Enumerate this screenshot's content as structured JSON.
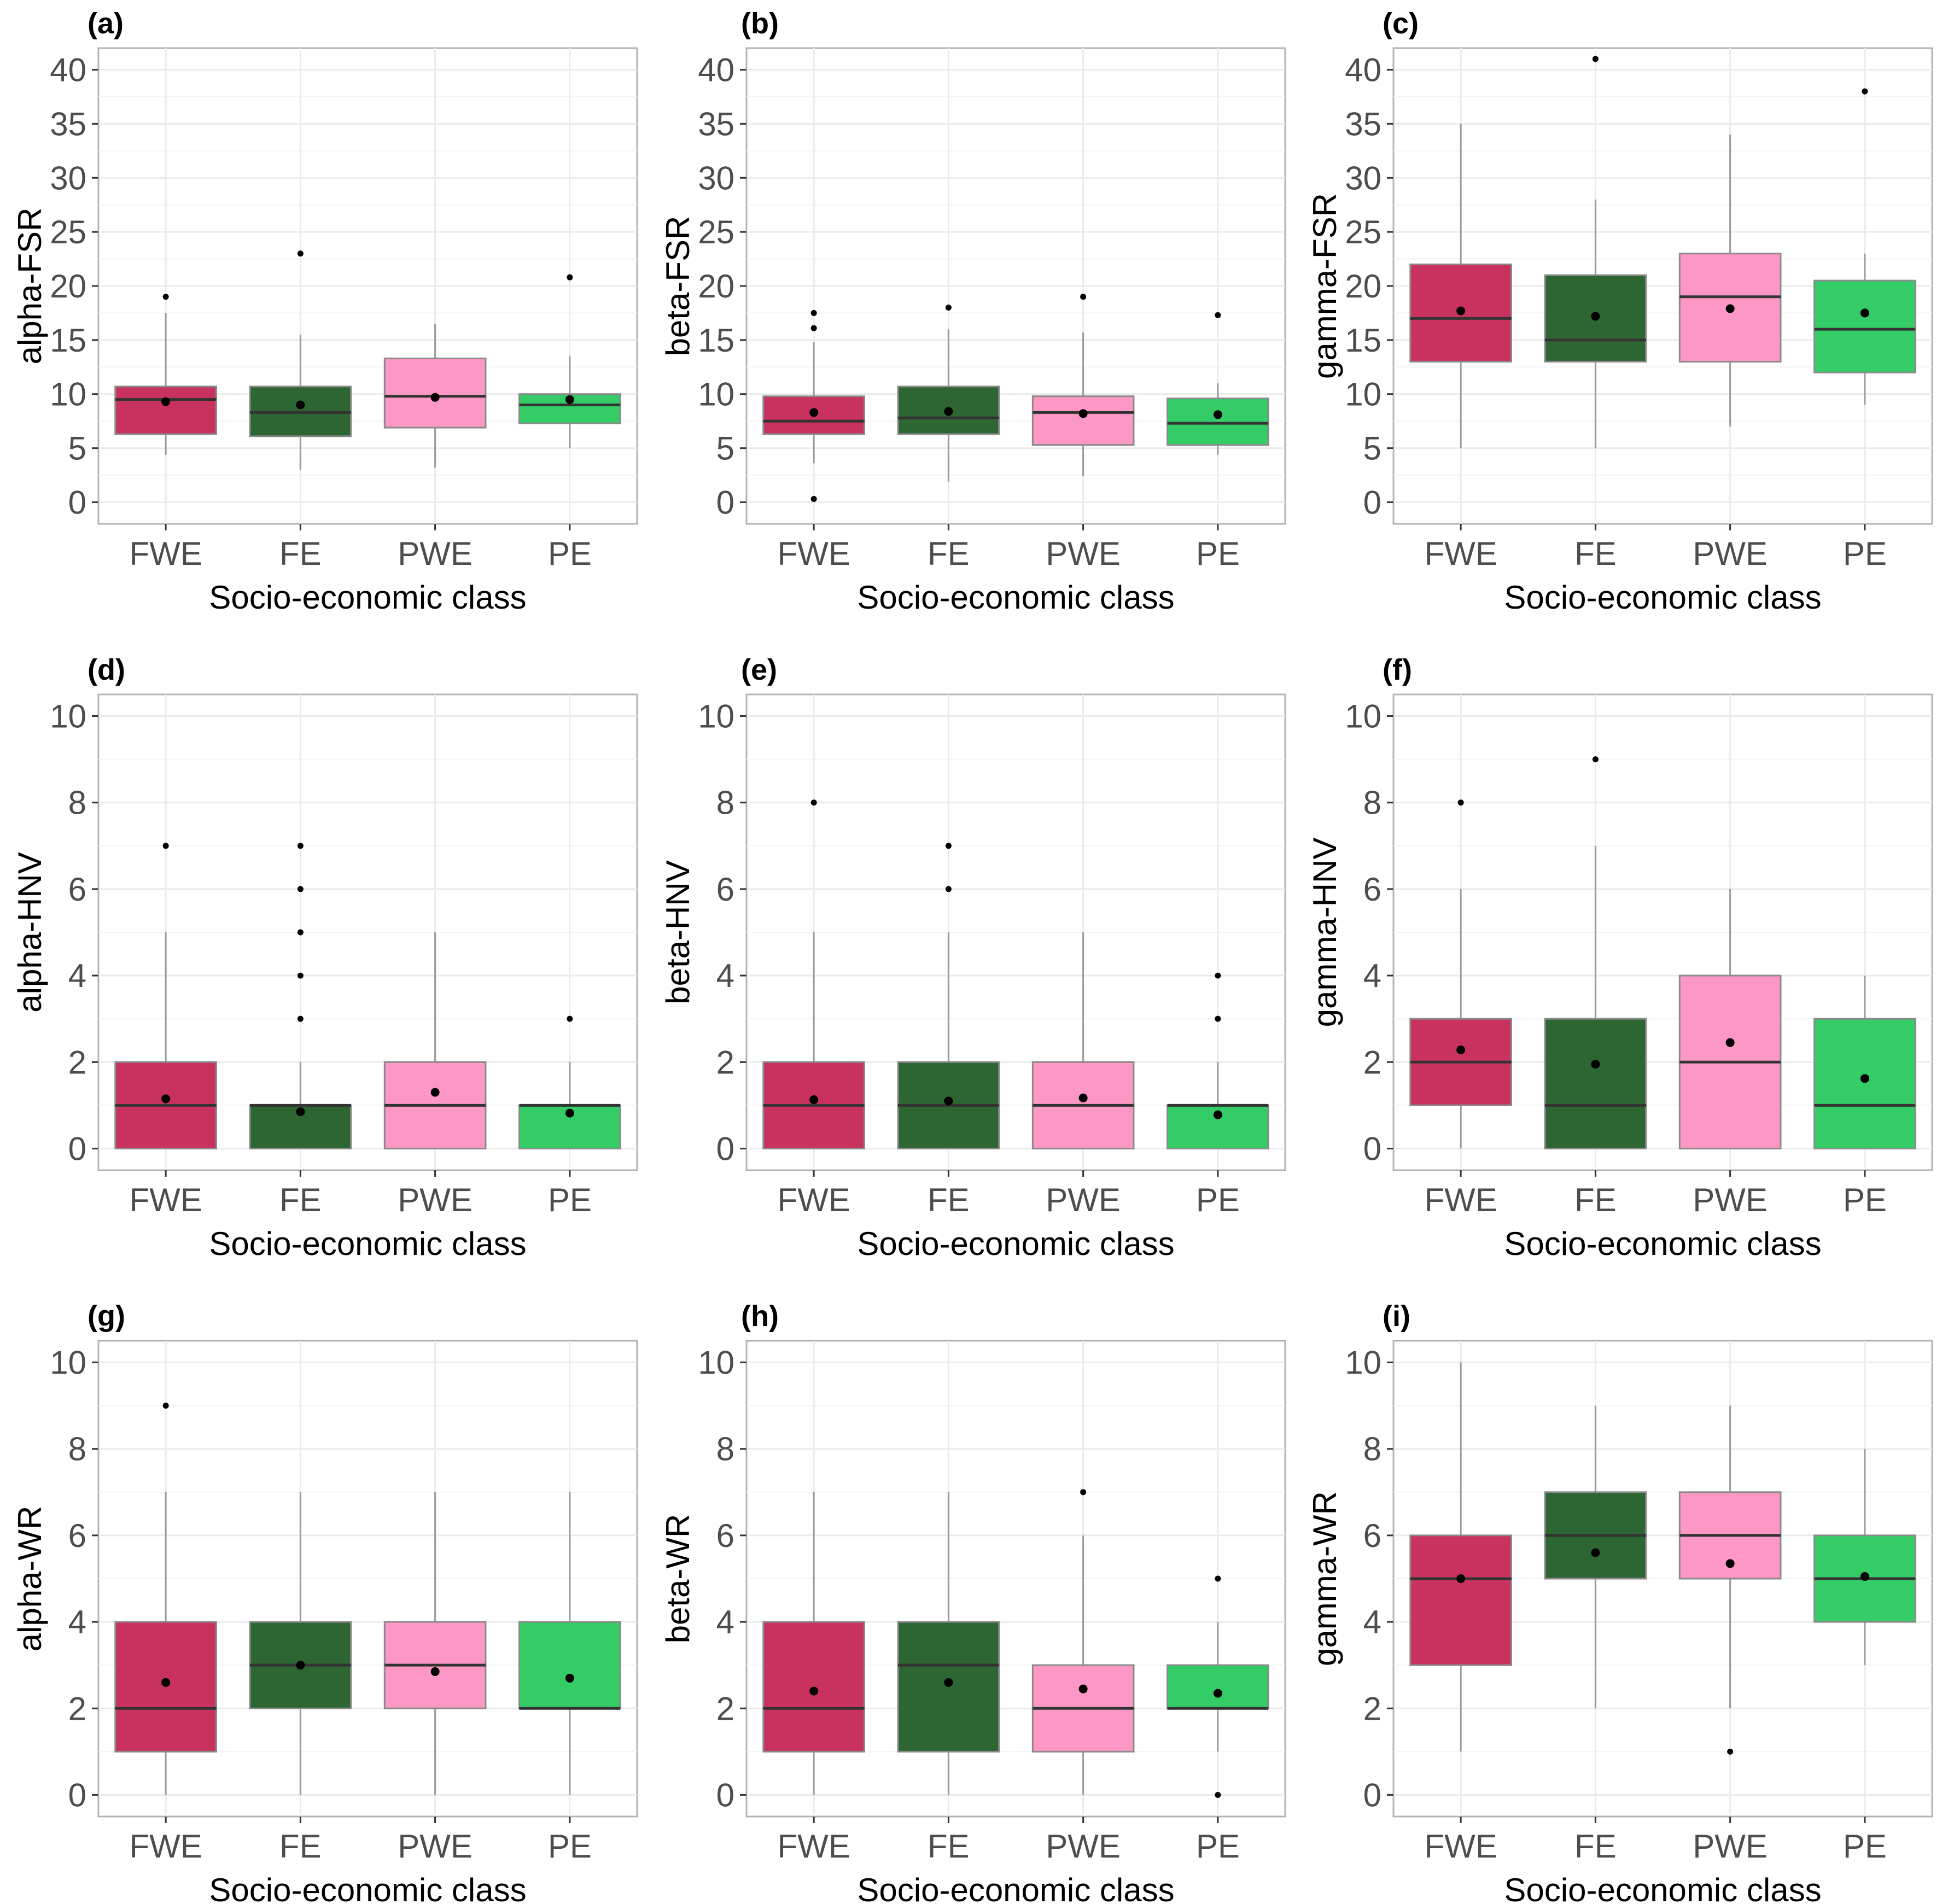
{
  "figure": {
    "categories": [
      "FWE",
      "FE",
      "PWE",
      "PE"
    ],
    "colors": {
      "FWE": "#c9325f",
      "FE": "#2e6633",
      "PWE": "#fd97c5",
      "PE": "#33cc66"
    },
    "xlabel": "Socio-economic class"
  },
  "chart_data": [
    {
      "type": "box",
      "tag": "(a)",
      "ylabel": "alpha-FSR",
      "xlabel": "Socio-economic class",
      "ylim": [
        -2,
        42
      ],
      "yticks": [
        "0",
        "5",
        "10",
        "15",
        "20",
        "25",
        "30",
        "35",
        "40"
      ],
      "categories": [
        "FWE",
        "FE",
        "PWE",
        "PE"
      ],
      "boxes": [
        {
          "category": "FWE",
          "q1": 6.3,
          "median": 9.5,
          "q3": 10.7,
          "whisker_low": 4.4,
          "whisker_high": 17.5,
          "mean": 9.3,
          "outliers": [
            19
          ]
        },
        {
          "category": "FE",
          "q1": 6.1,
          "median": 8.3,
          "q3": 10.7,
          "whisker_low": 3.0,
          "whisker_high": 15.5,
          "mean": 9.0,
          "outliers": [
            23
          ]
        },
        {
          "category": "PWE",
          "q1": 6.9,
          "median": 9.8,
          "q3": 13.3,
          "whisker_low": 3.2,
          "whisker_high": 16.5,
          "mean": 9.7,
          "outliers": []
        },
        {
          "category": "PE",
          "q1": 7.3,
          "median": 9.0,
          "q3": 10.0,
          "whisker_low": 5.0,
          "whisker_high": 13.5,
          "mean": 9.5,
          "outliers": [
            20.8
          ]
        }
      ]
    },
    {
      "type": "box",
      "tag": "(b)",
      "ylabel": "beta-FSR",
      "xlabel": "Socio-economic class",
      "ylim": [
        -2,
        42
      ],
      "yticks": [
        "0",
        "5",
        "10",
        "15",
        "20",
        "25",
        "30",
        "35",
        "40"
      ],
      "categories": [
        "FWE",
        "FE",
        "PWE",
        "PE"
      ],
      "boxes": [
        {
          "category": "FWE",
          "q1": 6.3,
          "median": 7.5,
          "q3": 9.8,
          "whisker_low": 3.6,
          "whisker_high": 14.8,
          "mean": 8.3,
          "outliers": [
            0.3,
            16.1,
            17.5
          ]
        },
        {
          "category": "FE",
          "q1": 6.3,
          "median": 7.8,
          "q3": 10.7,
          "whisker_low": 1.9,
          "whisker_high": 16.0,
          "mean": 8.4,
          "outliers": [
            18
          ]
        },
        {
          "category": "PWE",
          "q1": 5.3,
          "median": 8.3,
          "q3": 9.8,
          "whisker_low": 2.4,
          "whisker_high": 15.7,
          "mean": 8.2,
          "outliers": [
            19
          ]
        },
        {
          "category": "PE",
          "q1": 5.3,
          "median": 7.3,
          "q3": 9.6,
          "whisker_low": 4.4,
          "whisker_high": 11.0,
          "mean": 8.1,
          "outliers": [
            17.3
          ]
        }
      ]
    },
    {
      "type": "box",
      "tag": "(c)",
      "ylabel": "gamma-FSR",
      "xlabel": "Socio-economic class",
      "ylim": [
        -2,
        42
      ],
      "yticks": [
        "0",
        "5",
        "10",
        "15",
        "20",
        "25",
        "30",
        "35",
        "40"
      ],
      "categories": [
        "FWE",
        "FE",
        "PWE",
        "PE"
      ],
      "boxes": [
        {
          "category": "FWE",
          "q1": 13,
          "median": 17,
          "q3": 22,
          "whisker_low": 5,
          "whisker_high": 35,
          "mean": 17.7,
          "outliers": []
        },
        {
          "category": "FE",
          "q1": 13,
          "median": 15,
          "q3": 21,
          "whisker_low": 5,
          "whisker_high": 28,
          "mean": 17.2,
          "outliers": [
            41
          ]
        },
        {
          "category": "PWE",
          "q1": 13,
          "median": 19,
          "q3": 23,
          "whisker_low": 7,
          "whisker_high": 34,
          "mean": 17.9,
          "outliers": []
        },
        {
          "category": "PE",
          "q1": 12,
          "median": 16,
          "q3": 20.5,
          "whisker_low": 9,
          "whisker_high": 23,
          "mean": 17.5,
          "outliers": [
            38
          ]
        }
      ]
    },
    {
      "type": "box",
      "tag": "(d)",
      "ylabel": "alpha-HNV",
      "xlabel": "Socio-economic class",
      "ylim": [
        -0.5,
        10.5
      ],
      "yticks": [
        "0",
        "2",
        "4",
        "6",
        "8",
        "10"
      ],
      "categories": [
        "FWE",
        "FE",
        "PWE",
        "PE"
      ],
      "boxes": [
        {
          "category": "FWE",
          "q1": 0,
          "median": 1,
          "q3": 2,
          "whisker_low": 0,
          "whisker_high": 5,
          "mean": 1.15,
          "outliers": [
            7
          ]
        },
        {
          "category": "FE",
          "q1": 0,
          "median": 1,
          "q3": 1,
          "whisker_low": 0,
          "whisker_high": 2,
          "mean": 0.85,
          "outliers": [
            3,
            4,
            5,
            6,
            7
          ]
        },
        {
          "category": "PWE",
          "q1": 0,
          "median": 1,
          "q3": 2,
          "whisker_low": 0,
          "whisker_high": 5,
          "mean": 1.3,
          "outliers": []
        },
        {
          "category": "PE",
          "q1": 0,
          "median": 1,
          "q3": 1,
          "whisker_low": 0,
          "whisker_high": 2,
          "mean": 0.82,
          "outliers": [
            3
          ]
        }
      ]
    },
    {
      "type": "box",
      "tag": "(e)",
      "ylabel": "beta-HNV",
      "xlabel": "Socio-economic class",
      "ylim": [
        -0.5,
        10.5
      ],
      "yticks": [
        "0",
        "2",
        "4",
        "6",
        "8",
        "10"
      ],
      "categories": [
        "FWE",
        "FE",
        "PWE",
        "PE"
      ],
      "boxes": [
        {
          "category": "FWE",
          "q1": 0,
          "median": 1,
          "q3": 2,
          "whisker_low": 0,
          "whisker_high": 5,
          "mean": 1.13,
          "outliers": [
            8
          ]
        },
        {
          "category": "FE",
          "q1": 0,
          "median": 1,
          "q3": 2,
          "whisker_low": 0,
          "whisker_high": 5,
          "mean": 1.1,
          "outliers": [
            6,
            7
          ]
        },
        {
          "category": "PWE",
          "q1": 0,
          "median": 1,
          "q3": 2,
          "whisker_low": 0,
          "whisker_high": 5,
          "mean": 1.17,
          "outliers": []
        },
        {
          "category": "PE",
          "q1": 0,
          "median": 1,
          "q3": 1,
          "whisker_low": 0,
          "whisker_high": 2,
          "mean": 0.78,
          "outliers": [
            3,
            4
          ]
        }
      ]
    },
    {
      "type": "box",
      "tag": "(f)",
      "ylabel": "gamma-HNV",
      "xlabel": "Socio-economic class",
      "ylim": [
        -0.5,
        10.5
      ],
      "yticks": [
        "0",
        "2",
        "4",
        "6",
        "8",
        "10"
      ],
      "categories": [
        "FWE",
        "FE",
        "PWE",
        "PE"
      ],
      "boxes": [
        {
          "category": "FWE",
          "q1": 1,
          "median": 2,
          "q3": 3,
          "whisker_low": 0,
          "whisker_high": 6,
          "mean": 2.28,
          "outliers": [
            8
          ]
        },
        {
          "category": "FE",
          "q1": 0,
          "median": 1,
          "q3": 3,
          "whisker_low": 0,
          "whisker_high": 7,
          "mean": 1.95,
          "outliers": [
            9
          ]
        },
        {
          "category": "PWE",
          "q1": 0,
          "median": 2,
          "q3": 4,
          "whisker_low": 0,
          "whisker_high": 6,
          "mean": 2.45,
          "outliers": []
        },
        {
          "category": "PE",
          "q1": 0,
          "median": 1,
          "q3": 3,
          "whisker_low": 0,
          "whisker_high": 4,
          "mean": 1.62,
          "outliers": []
        }
      ]
    },
    {
      "type": "box",
      "tag": "(g)",
      "ylabel": "alpha-WR",
      "xlabel": "Socio-economic class",
      "ylim": [
        -0.5,
        10.5
      ],
      "yticks": [
        "0",
        "2",
        "4",
        "6",
        "8",
        "10"
      ],
      "categories": [
        "FWE",
        "FE",
        "PWE",
        "PE"
      ],
      "boxes": [
        {
          "category": "FWE",
          "q1": 1,
          "median": 2,
          "q3": 4,
          "whisker_low": 0,
          "whisker_high": 7,
          "mean": 2.6,
          "outliers": [
            9
          ]
        },
        {
          "category": "FE",
          "q1": 2,
          "median": 3,
          "q3": 4,
          "whisker_low": 0,
          "whisker_high": 7,
          "mean": 3.0,
          "outliers": []
        },
        {
          "category": "PWE",
          "q1": 2,
          "median": 3,
          "q3": 4,
          "whisker_low": 0,
          "whisker_high": 7,
          "mean": 2.85,
          "outliers": []
        },
        {
          "category": "PE",
          "q1": 2,
          "median": 2,
          "q3": 4,
          "whisker_low": 0,
          "whisker_high": 7,
          "mean": 2.7,
          "outliers": []
        }
      ]
    },
    {
      "type": "box",
      "tag": "(h)",
      "ylabel": "beta-WR",
      "xlabel": "Socio-economic class",
      "ylim": [
        -0.5,
        10.5
      ],
      "yticks": [
        "0",
        "2",
        "4",
        "6",
        "8",
        "10"
      ],
      "categories": [
        "FWE",
        "FE",
        "PWE",
        "PE"
      ],
      "boxes": [
        {
          "category": "FWE",
          "q1": 1,
          "median": 2,
          "q3": 4,
          "whisker_low": 0,
          "whisker_high": 7,
          "mean": 2.4,
          "outliers": []
        },
        {
          "category": "FE",
          "q1": 1,
          "median": 3,
          "q3": 4,
          "whisker_low": 0,
          "whisker_high": 7,
          "mean": 2.6,
          "outliers": []
        },
        {
          "category": "PWE",
          "q1": 1,
          "median": 2,
          "q3": 3,
          "whisker_low": 0,
          "whisker_high": 6,
          "mean": 2.45,
          "outliers": [
            7
          ]
        },
        {
          "category": "PE",
          "q1": 2,
          "median": 2,
          "q3": 3,
          "whisker_low": 1,
          "whisker_high": 4,
          "mean": 2.35,
          "outliers": [
            0,
            5
          ]
        }
      ]
    },
    {
      "type": "box",
      "tag": "(i)",
      "ylabel": "gamma-WR",
      "xlabel": "Socio-economic class",
      "ylim": [
        -0.5,
        10.5
      ],
      "yticks": [
        "0",
        "2",
        "4",
        "6",
        "8",
        "10"
      ],
      "categories": [
        "FWE",
        "FE",
        "PWE",
        "PE"
      ],
      "boxes": [
        {
          "category": "FWE",
          "q1": 3,
          "median": 5,
          "q3": 6,
          "whisker_low": 1,
          "whisker_high": 10,
          "mean": 5.0,
          "outliers": []
        },
        {
          "category": "FE",
          "q1": 5,
          "median": 6,
          "q3": 7,
          "whisker_low": 2,
          "whisker_high": 9,
          "mean": 5.6,
          "outliers": []
        },
        {
          "category": "PWE",
          "q1": 5,
          "median": 6,
          "q3": 7,
          "whisker_low": 2,
          "whisker_high": 9,
          "mean": 5.35,
          "outliers": [
            1
          ]
        },
        {
          "category": "PE",
          "q1": 4,
          "median": 5,
          "q3": 6,
          "whisker_low": 3,
          "whisker_high": 8,
          "mean": 5.05,
          "outliers": []
        }
      ]
    }
  ]
}
